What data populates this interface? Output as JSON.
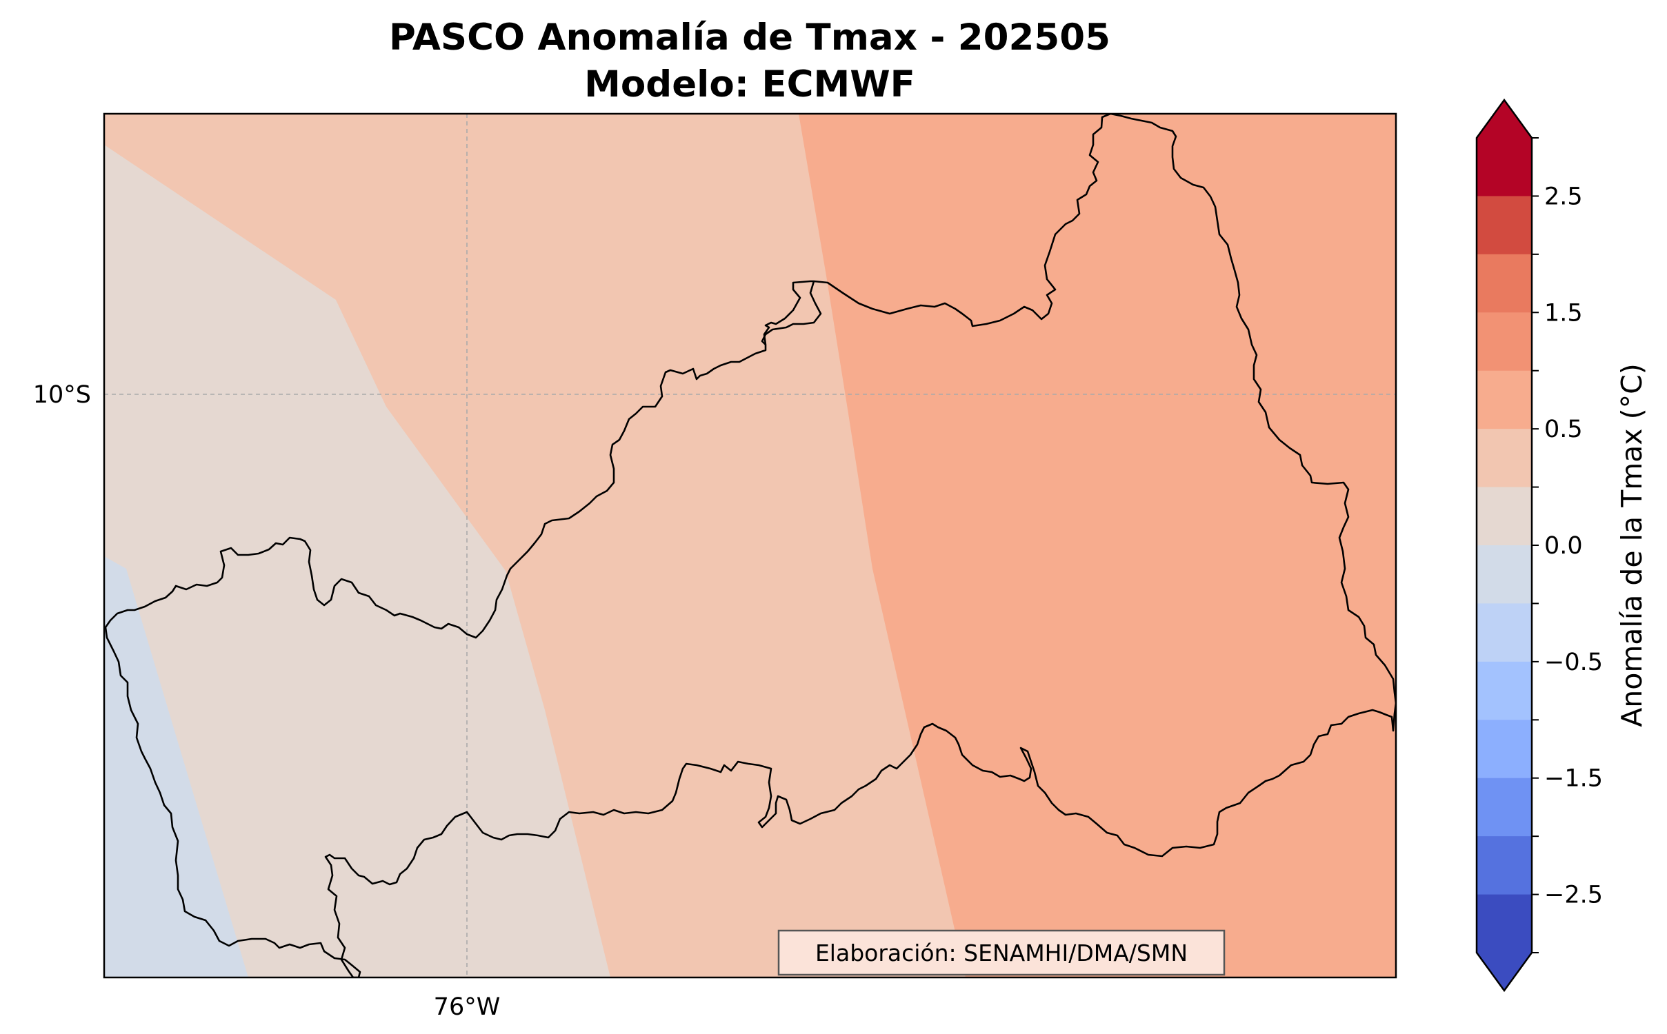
{
  "map": {
    "title_line1": "PASCO Anomalía de Tmax - 202505",
    "title_line2": "Modelo: ECMWF",
    "lat_label": "10°S",
    "lon_label": "76°W",
    "credit": "Elaboración: SENAMHI/DMA/SMN",
    "gridlines": true,
    "border_color": "#000000"
  },
  "colorbar": {
    "label": "Anomalía de la Tmax (°C)",
    "orientation": "vertical",
    "placement": "right",
    "extend": "both",
    "ticks": [
      "2.5",
      "1.5",
      "0.5",
      "0.0",
      "−0.5",
      "−1.5",
      "−2.5"
    ],
    "bins_top_to_bottom": [
      {
        "range": "> 3.0",
        "color": "#b40426"
      },
      {
        "range": "2.5 to 3.0",
        "color": "#b40426"
      },
      {
        "range": "2.0 to 2.5",
        "color": "#d24b40"
      },
      {
        "range": "1.5 to 2.0",
        "color": "#e97a5f"
      },
      {
        "range": "1.0 to 1.5",
        "color": "#f29274"
      },
      {
        "range": "0.5 to 1.0",
        "color": "#f7ac8e"
      },
      {
        "range": "0.25 to 0.5",
        "color": "#f2c6b1"
      },
      {
        "range": "0.0 to 0.25",
        "color": "#e5d8d1"
      },
      {
        "range": "-0.25 to 0.0",
        "color": "#d2dbe8"
      },
      {
        "range": "-0.5 to -0.25",
        "color": "#bed2f6"
      },
      {
        "range": "-1.0 to -0.5",
        "color": "#a3c2fe"
      },
      {
        "range": "-1.5 to -1.0",
        "color": "#8caffe"
      },
      {
        "range": "-2.0 to -1.5",
        "color": "#6f92f3"
      },
      {
        "range": "-2.5 to -2.0",
        "color": "#5572df"
      },
      {
        "range": "-3.0 to -2.5",
        "color": "#3b4cc0"
      },
      {
        "range": "< -3.0",
        "color": "#3b4cc0"
      }
    ]
  },
  "fill_zones": [
    {
      "name": "zone-weak-negative",
      "range": "-0.25 to 0.0",
      "color": "#d2dbe8"
    },
    {
      "name": "zone-near-zero",
      "range": "0.0 to 0.25",
      "color": "#e5d8d1"
    },
    {
      "name": "zone-weak-positive",
      "range": "0.25 to 0.5",
      "color": "#f2c6b1"
    },
    {
      "name": "zone-positive",
      "range": "0.5 to 1.0",
      "color": "#f7ac8e"
    }
  ]
}
